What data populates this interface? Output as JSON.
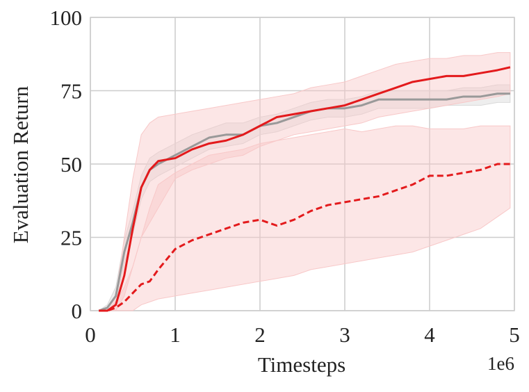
{
  "chart_data": {
    "type": "line",
    "xlabel": "Timesteps",
    "ylabel": "Evaluation Return",
    "x_offset_label": "1e6",
    "x": [
      0.1,
      0.2,
      0.3,
      0.4,
      0.5,
      0.6,
      0.7,
      0.8,
      1.0,
      1.2,
      1.4,
      1.6,
      1.8,
      2.0,
      2.2,
      2.4,
      2.6,
      2.8,
      3.0,
      3.2,
      3.4,
      3.6,
      3.8,
      4.0,
      4.2,
      4.4,
      4.6,
      4.8,
      4.95
    ],
    "xlim": [
      0,
      5
    ],
    "xticks": [
      0,
      1,
      2,
      3,
      4,
      5
    ],
    "ylim": [
      0,
      100
    ],
    "yticks": [
      0,
      25,
      50,
      75,
      100
    ],
    "grid": true,
    "series": [
      {
        "color": "#999999",
        "band_color": "#d9d9d9",
        "dash": false,
        "values": [
          0,
          1,
          5,
          20,
          30,
          42,
          48,
          50,
          53,
          56,
          59,
          60,
          60,
          63,
          64,
          66,
          68,
          69,
          69,
          70,
          72,
          72,
          72,
          72,
          72,
          73,
          73,
          74,
          74
        ],
        "lower": [
          0,
          0,
          3,
          16,
          26,
          38,
          44,
          46,
          49,
          52,
          55,
          56,
          57,
          60,
          61,
          63,
          65,
          66,
          66,
          67,
          69,
          69,
          69,
          69,
          70,
          70,
          70,
          71,
          71
        ],
        "upper": [
          0,
          2,
          8,
          24,
          34,
          46,
          52,
          54,
          57,
          60,
          62,
          64,
          64,
          66,
          67,
          69,
          71,
          72,
          72,
          73,
          75,
          75,
          75,
          75,
          75,
          76,
          76,
          77,
          77
        ]
      },
      {
        "color": "#e31a1c",
        "band_color": "#f8c8c8",
        "dash": false,
        "values": [
          0,
          0,
          2,
          12,
          28,
          42,
          48,
          51,
          52,
          55,
          57,
          58,
          60,
          63,
          66,
          67,
          68,
          69,
          70,
          72,
          74,
          76,
          78,
          79,
          80,
          80,
          81,
          82,
          83
        ],
        "lower": [
          0,
          0,
          0,
          5,
          15,
          25,
          30,
          35,
          45,
          48,
          50,
          52,
          53,
          56,
          58,
          60,
          61,
          62,
          63,
          64,
          66,
          67,
          68,
          69,
          70,
          71,
          72,
          73,
          74
        ],
        "upper": [
          0,
          1,
          5,
          25,
          45,
          60,
          64,
          66,
          67,
          68,
          69,
          70,
          71,
          72,
          73,
          74,
          76,
          77,
          78,
          80,
          82,
          84,
          85,
          86,
          86,
          87,
          87,
          88,
          88
        ]
      },
      {
        "color": "#e31a1c",
        "band_color": "#f8c8c8",
        "dash": true,
        "values": [
          0,
          0,
          1,
          3,
          6,
          9,
          10,
          14,
          21,
          24,
          26,
          28,
          30,
          31,
          29,
          31,
          34,
          36,
          37,
          38,
          39,
          41,
          43,
          46,
          46,
          47,
          48,
          50,
          50
        ],
        "lower": [
          0,
          0,
          0,
          0,
          0,
          2,
          3,
          4,
          5,
          6,
          7,
          8,
          9,
          10,
          11,
          12,
          14,
          15,
          16,
          17,
          18,
          19,
          20,
          22,
          24,
          26,
          28,
          32,
          35
        ],
        "upper": [
          0,
          0,
          3,
          8,
          15,
          25,
          35,
          43,
          47,
          50,
          53,
          54,
          55,
          57,
          58,
          59,
          60,
          61,
          62,
          61,
          62,
          63,
          63,
          62,
          62,
          62,
          63,
          63,
          63
        ]
      }
    ]
  }
}
